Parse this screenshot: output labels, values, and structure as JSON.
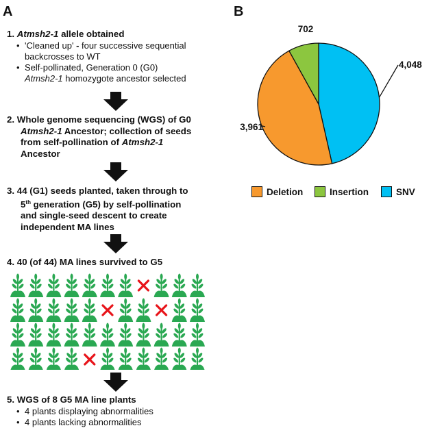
{
  "panel_a_label": "A",
  "panel_b_label": "B",
  "steps": [
    {
      "number": "1.",
      "lines": [
        [
          {
            "t": "Atmsh2-1",
            "i": true
          },
          {
            "t": " allele obtained",
            "i": false
          }
        ]
      ],
      "bullets": [
        [
          [
            {
              "t": "'Cleaned up' ",
              "b": false
            },
            {
              "t": "-",
              "b": true
            },
            {
              "t": " four successive sequential",
              "b": false
            }
          ],
          [
            {
              "t": "backcrosses to WT"
            }
          ]
        ],
        [
          [
            {
              "t": "Self-pollinated, Generation 0 (G0)"
            }
          ],
          [
            {
              "t": "Atmsh2-1",
              "i": true
            },
            {
              "t": " homozygote ancestor selected"
            }
          ]
        ]
      ]
    },
    {
      "number": "2.",
      "lines": [
        [
          {
            "t": "Whole genome sequencing (WGS) of G0"
          }
        ],
        [
          {
            "t": "Atmsh2-1",
            "i": true
          },
          {
            "t": " Ancestor; collection of seeds"
          }
        ],
        [
          {
            "t": "from self-pollination of "
          },
          {
            "t": "Atmsh2-1",
            "i": true
          }
        ],
        [
          {
            "t": "Ancestor"
          }
        ]
      ]
    },
    {
      "number": "3.",
      "lines": [
        [
          {
            "t": "44 (G1) seeds planted, taken through to"
          }
        ],
        [
          {
            "t": "5"
          },
          {
            "t": "th",
            "sup": true
          },
          {
            "t": " generation (G5) by self-pollination"
          }
        ],
        [
          {
            "t": "and single-seed descent to create"
          }
        ],
        [
          {
            "t": "independent MA lines"
          }
        ]
      ]
    },
    {
      "number": "4.",
      "lines": [
        [
          {
            "t": "40 (of 44) MA lines survived to G5"
          }
        ]
      ]
    },
    {
      "number": "5.",
      "lines": [
        [
          {
            "t": "WGS of 8 G5 MA line plants"
          }
        ]
      ],
      "bullets": [
        [
          [
            {
              "t": "4 plants displaying abnormalities"
            }
          ]
        ],
        [
          [
            {
              "t": "4 plants lacking abnormalities"
            }
          ]
        ]
      ]
    }
  ],
  "plant_grid": {
    "rows": 4,
    "cols": 11,
    "dead": [
      [
        0,
        7
      ],
      [
        1,
        5
      ],
      [
        1,
        8
      ],
      [
        3,
        4
      ]
    ],
    "plant_color": "#2aa852",
    "cross_color": "#e8141a",
    "icon_names": {
      "plant": "plant-icon",
      "dead": "red-cross-icon"
    }
  },
  "arrow_icon": "down-arrow-icon",
  "chart_data": {
    "type": "pie",
    "title": "",
    "slices": [
      {
        "label": "Deletion",
        "value": 3961,
        "value_label": "3,961",
        "color": "#f7992e"
      },
      {
        "label": "Insertion",
        "value": 702,
        "value_label": "702",
        "color": "#8cc63f"
      },
      {
        "label": "SNV",
        "value": 4048,
        "value_label": "4,048",
        "color": "#00c0f3"
      }
    ],
    "legend": {
      "entries": [
        "Deletion",
        "Insertion",
        "SNV"
      ],
      "placement": "bottom"
    }
  }
}
